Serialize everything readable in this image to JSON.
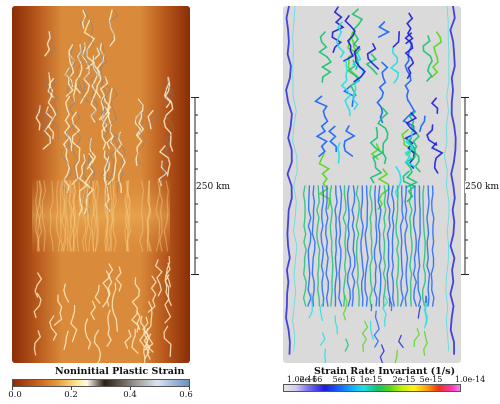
{
  "left_panel": {
    "scale_label": "250 km",
    "colorbar": {
      "title": "Noninitial Plastic Strain",
      "ticks": [
        "0.0",
        "0.2",
        "0.4",
        "0.6"
      ]
    }
  },
  "right_panel": {
    "scale_label": "250 km",
    "colorbar": {
      "title": "Strain Rate Invariant (1/s)",
      "ticks": [
        "1.0e-16",
        "2e-16",
        "5e-16",
        "1e-15",
        "2e-15",
        "5e-15",
        "1.0e-14"
      ]
    }
  },
  "colors": {
    "strain_background": "#d98a3a",
    "strain_edge": "#8a2d07",
    "strain_band": "#fbe7a8",
    "rate_background": "#dadada",
    "rate_low": "#1b1bdd",
    "rate_mid": "#13c271"
  }
}
